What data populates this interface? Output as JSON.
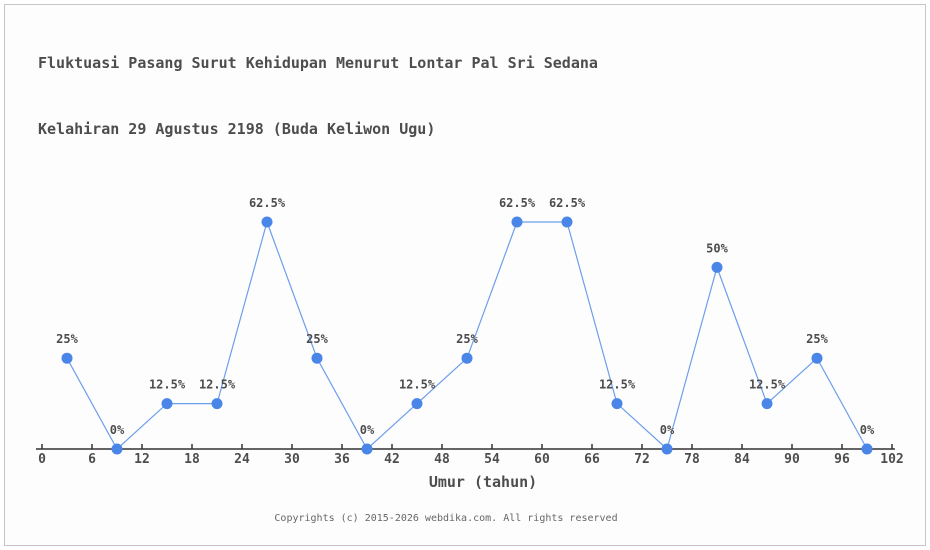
{
  "page": {
    "background": "#fdfdfd",
    "border_color": "#c6c6c6"
  },
  "header": {
    "title_line1": "Fluktuasi Pasang Surut Kehidupan Menurut Lontar Pal Sri Sedana",
    "title_line2": "Kelahiran 29 Agustus 2198 (Buda Keliwon Ugu)"
  },
  "chart_data": {
    "type": "line",
    "title": "Fluktuasi Pasang Surut Kehidupan Menurut Lontar Pal Sri Sedana Kelahiran 29 Agustus 2198 (Buda Keliwon Ugu)",
    "xlabel": "Umur (tahun)",
    "ylabel": "",
    "x": [
      3,
      9,
      15,
      21,
      27,
      33,
      39,
      45,
      51,
      57,
      63,
      69,
      75,
      81,
      87,
      93,
      99
    ],
    "values": [
      25,
      0,
      12.5,
      12.5,
      62.5,
      25,
      0,
      12.5,
      25,
      62.5,
      62.5,
      12.5,
      0,
      50,
      12.5,
      25,
      0
    ],
    "point_labels": [
      "25%",
      "0%",
      "12.5%",
      "12.5%",
      "62.5%",
      "25%",
      "0%",
      "12.5%",
      "25%",
      "62.5%",
      "62.5%",
      "12.5%",
      "0%",
      "50%",
      "12.5%",
      "25%",
      "0%"
    ],
    "x_ticks": [
      0,
      6,
      12,
      18,
      24,
      30,
      36,
      42,
      48,
      54,
      60,
      66,
      72,
      78,
      84,
      90,
      96,
      102
    ],
    "xlim": [
      0,
      102
    ],
    "ylim": [
      0,
      70
    ],
    "grid": false,
    "legend": null,
    "colors": {
      "line": "#6d9eeb",
      "point": "#4a86e8",
      "axis": "#333333",
      "tick_label": "#4d4d4d",
      "point_label": "#4d4d4d"
    }
  },
  "footer": {
    "copyright": "Copyrights (c) 2015-2026 webdika.com. All rights reserved"
  }
}
